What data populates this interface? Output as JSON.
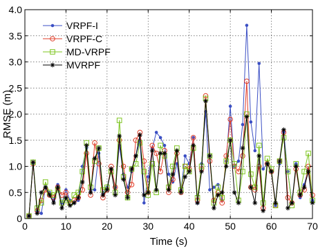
{
  "chart_data": {
    "type": "line",
    "title": "",
    "xlabel": "Time (s)",
    "ylabel": "RMSE (m)",
    "xlim": [
      0,
      70
    ],
    "ylim": [
      0,
      4
    ],
    "xticks": [
      0,
      10,
      20,
      30,
      40,
      50,
      60,
      70
    ],
    "yticks": [
      0,
      0.5,
      1.0,
      1.5,
      2.0,
      2.5,
      3.0,
      3.5,
      4.0
    ],
    "xtick_labels": [
      "0",
      "10",
      "20",
      "30",
      "40",
      "50",
      "60",
      "70"
    ],
    "ytick_labels": [
      "0",
      "0.5",
      "1.0",
      "1.5",
      "2.0",
      "2.5",
      "3.0",
      "3.5",
      "4.0"
    ],
    "grid": true,
    "legend_position": "top-left",
    "x": [
      1,
      2,
      3,
      4,
      5,
      6,
      7,
      8,
      9,
      10,
      11,
      12,
      13,
      14,
      15,
      16,
      17,
      18,
      19,
      20,
      21,
      22,
      23,
      24,
      25,
      26,
      27,
      28,
      29,
      30,
      31,
      32,
      33,
      34,
      35,
      36,
      37,
      38,
      39,
      40,
      41,
      42,
      43,
      44,
      45,
      46,
      47,
      48,
      49,
      50,
      51,
      52,
      53,
      54,
      55,
      56,
      57,
      58,
      59,
      60,
      61,
      62,
      63,
      64,
      65,
      66,
      67,
      68,
      69,
      70
    ],
    "series": [
      {
        "name": "VRPF-I",
        "color": "#3b4fc4",
        "marker": "dot",
        "values": [
          0.05,
          1.05,
          0.15,
          0.1,
          0.6,
          0.5,
          0.35,
          0.65,
          0.3,
          0.55,
          0.35,
          0.3,
          0.35,
          1.0,
          1.35,
          0.55,
          0.55,
          1.25,
          0.5,
          0.6,
          0.95,
          0.6,
          1.4,
          0.85,
          0.6,
          0.9,
          1.2,
          1.5,
          0.3,
          0.8,
          1.35,
          1.65,
          1.55,
          1.4,
          0.85,
          0.7,
          1.05,
          0.55,
          1.2,
          1.05,
          1.55,
          0.3,
          1.05,
          2.05,
          0.55,
          0.6,
          0.65,
          0.35,
          1.1,
          2.15,
          1.0,
          1.1,
          1.8,
          3.7,
          1.85,
          1.3,
          2.97,
          0.95,
          1.05,
          0.9,
          0.25,
          1.05,
          1.65,
          0.9,
          0.3,
          1.05,
          0.4,
          0.65,
          0.95,
          0.35
        ]
      },
      {
        "name": "VRPF-C",
        "color": "#e03c28",
        "marker": "circle",
        "values": [
          0.05,
          1.05,
          0.15,
          0.35,
          0.55,
          0.45,
          0.4,
          0.6,
          0.45,
          0.5,
          0.3,
          0.35,
          0.4,
          0.55,
          1.25,
          0.45,
          1.45,
          1.05,
          0.4,
          0.55,
          1.0,
          0.6,
          1.5,
          1.0,
          0.5,
          0.65,
          1.5,
          1.65,
          1.1,
          0.5,
          1.4,
          1.25,
          0.9,
          1.3,
          0.5,
          0.75,
          1.25,
          0.5,
          1.0,
          0.95,
          1.55,
          0.35,
          0.95,
          2.35,
          1.1,
          0.35,
          0.5,
          0.3,
          1.2,
          1.9,
          1.0,
          0.9,
          1.2,
          2.63,
          0.6,
          0.55,
          1.0,
          0.2,
          1.05,
          0.9,
          0.25,
          1.1,
          1.65,
          0.4,
          0.3,
          0.95,
          0.45,
          0.55,
          1.0,
          0.45
        ]
      },
      {
        "name": "MD-VRPF",
        "color": "#7cc41e",
        "marker": "square",
        "values": [
          0.05,
          1.08,
          0.2,
          0.3,
          0.7,
          0.5,
          0.45,
          0.55,
          0.3,
          0.35,
          0.3,
          0.45,
          0.5,
          0.9,
          1.45,
          0.6,
          1.1,
          1.35,
          0.55,
          0.6,
          0.9,
          0.5,
          1.88,
          0.8,
          0.4,
          0.95,
          1.05,
          1.45,
          0.9,
          0.45,
          1.05,
          0.5,
          1.4,
          1.2,
          0.6,
          1.0,
          1.35,
          0.55,
          1.0,
          0.9,
          1.35,
          0.4,
          1.0,
          2.3,
          1.2,
          0.3,
          0.6,
          0.4,
          1.1,
          1.5,
          1.05,
          0.35,
          0.9,
          2.0,
          0.85,
          0.6,
          1.4,
          0.3,
          1.15,
          0.95,
          0.25,
          1.1,
          1.55,
          0.9,
          0.25,
          1.05,
          0.5,
          0.9,
          1.25,
          0.35
        ]
      },
      {
        "name": "MVRPF",
        "color": "#000000",
        "marker": "star",
        "values": [
          0.05,
          1.08,
          0.1,
          0.5,
          0.6,
          0.45,
          0.3,
          0.6,
          0.2,
          0.4,
          0.25,
          0.3,
          0.4,
          0.7,
          1.4,
          0.5,
          1.15,
          1.35,
          0.45,
          0.55,
          0.95,
          0.45,
          1.58,
          0.75,
          0.4,
          0.95,
          1.2,
          1.6,
          0.45,
          0.5,
          1.3,
          0.55,
          1.25,
          1.25,
          0.55,
          0.85,
          1.3,
          0.5,
          0.8,
          0.9,
          1.4,
          0.3,
          0.9,
          2.25,
          1.2,
          0.2,
          0.45,
          0.5,
          1.0,
          1.5,
          0.5,
          0.3,
          1.35,
          1.95,
          0.6,
          0.3,
          1.2,
          0.15,
          1.05,
          0.9,
          0.3,
          1.1,
          1.7,
          0.2,
          0.3,
          1.0,
          0.45,
          0.6,
          0.9,
          0.3
        ]
      }
    ]
  }
}
